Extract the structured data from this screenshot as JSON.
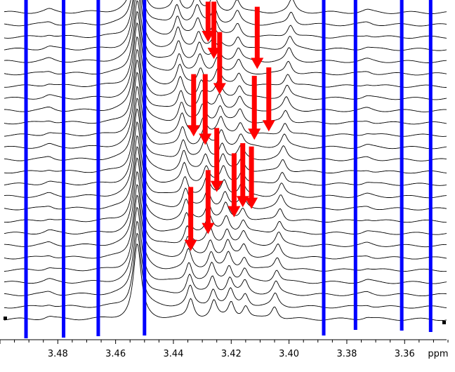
{
  "chart_data": {
    "type": "line",
    "title": "",
    "xlabel": "",
    "ylabel": "",
    "x_unit": "ppm",
    "x_axis_reversed": true,
    "xlim": [
      3.5,
      3.345
    ],
    "ticks": [
      {
        "value": 3.48,
        "label": "3.48"
      },
      {
        "value": 3.46,
        "label": "3.46"
      },
      {
        "value": 3.44,
        "label": "3.44"
      },
      {
        "value": 3.42,
        "label": "3.42"
      },
      {
        "value": 3.4,
        "label": "3.40"
      },
      {
        "value": 3.38,
        "label": "3.38"
      },
      {
        "value": 3.36,
        "label": "3.36"
      }
    ],
    "stacked_traces_count": 26,
    "colors": {
      "trace": "#000000",
      "reference_line": "#0000ff",
      "arrow": "#ff0000"
    },
    "reference_lines_ppm": [
      3.491,
      3.478,
      3.466,
      3.45,
      3.388,
      3.377,
      3.361,
      3.351
    ],
    "spectra": {
      "main_peak_ppm": 3.4525,
      "peak_families": [
        {
          "start_ppm": 3.434,
          "end_ppm": 3.439,
          "amplitude": 0.85
        },
        {
          "start_ppm": 3.426,
          "end_ppm": 3.432,
          "amplitude": 0.75
        },
        {
          "start_ppm": 3.42,
          "end_ppm": 3.426,
          "amplitude": 0.7
        },
        {
          "start_ppm": 3.415,
          "end_ppm": 3.418,
          "amplitude": 0.55
        },
        {
          "start_ppm": 3.405,
          "end_ppm": 3.399,
          "amplitude": 0.55
        }
      ]
    },
    "arrows": [
      {
        "x_ppm": 3.428,
        "y_start": 0.005,
        "y_end": 0.125
      },
      {
        "x_ppm": 3.426,
        "y_start": 0.005,
        "y_end": 0.175
      },
      {
        "x_ppm": 3.424,
        "y_start": 0.095,
        "y_end": 0.28
      },
      {
        "x_ppm": 3.411,
        "y_start": 0.02,
        "y_end": 0.205
      },
      {
        "x_ppm": 3.407,
        "y_start": 0.2,
        "y_end": 0.39
      },
      {
        "x_ppm": 3.433,
        "y_start": 0.22,
        "y_end": 0.405
      },
      {
        "x_ppm": 3.429,
        "y_start": 0.22,
        "y_end": 0.43
      },
      {
        "x_ppm": 3.425,
        "y_start": 0.38,
        "y_end": 0.57
      },
      {
        "x_ppm": 3.412,
        "y_start": 0.225,
        "y_end": 0.415
      },
      {
        "x_ppm": 3.416,
        "y_start": 0.425,
        "y_end": 0.615
      },
      {
        "x_ppm": 3.419,
        "y_start": 0.455,
        "y_end": 0.645
      },
      {
        "x_ppm": 3.413,
        "y_start": 0.435,
        "y_end": 0.62
      },
      {
        "x_ppm": 3.428,
        "y_start": 0.505,
        "y_end": 0.695
      },
      {
        "x_ppm": 3.434,
        "y_start": 0.555,
        "y_end": 0.745
      }
    ]
  }
}
